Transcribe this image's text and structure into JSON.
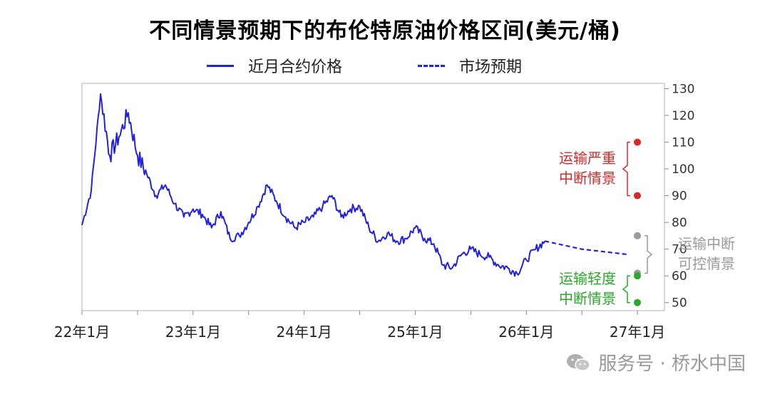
{
  "title": "不同情景预期下的布伦特原油价格区间(美元/桶)",
  "legend": {
    "series1": "近月合约价格",
    "series2": "市场预期"
  },
  "colors": {
    "line": "#2222dd",
    "severe": "#d42a2a",
    "controlled": "#9a9a9a",
    "mild": "#2aa82a",
    "axis": "#888888"
  },
  "watermark": {
    "text": "服务号 · 桥水中国",
    "icon": "wechat-icon"
  },
  "chart_data": {
    "type": "line",
    "title": "不同情景预期下的布伦特原油价格区间(美元/桶)",
    "xlabel": "",
    "ylabel": "",
    "x_ticks": [
      "22年1月",
      "23年1月",
      "24年1月",
      "25年1月",
      "26年1月",
      "27年1月"
    ],
    "y_ticks": [
      50,
      60,
      70,
      80,
      90,
      100,
      110,
      120,
      130
    ],
    "ylim": [
      47,
      132
    ],
    "xlim": [
      "2022-01",
      "2027-01"
    ],
    "grid": false,
    "legend_position": "top",
    "series": [
      {
        "name": "近月合约价格",
        "style": "solid",
        "x": [
          "2022-01",
          "2022-02",
          "2022-03",
          "2022-04",
          "2022-05",
          "2022-06",
          "2022-07",
          "2022-08",
          "2022-09",
          "2022-10",
          "2022-11",
          "2022-12",
          "2023-01",
          "2023-02",
          "2023-03",
          "2023-04",
          "2023-05",
          "2023-06",
          "2023-07",
          "2023-08",
          "2023-09",
          "2023-10",
          "2023-11",
          "2023-12",
          "2024-01",
          "2024-02",
          "2024-03",
          "2024-04",
          "2024-05",
          "2024-06",
          "2024-07",
          "2024-08",
          "2024-09",
          "2024-10",
          "2024-11",
          "2024-12",
          "2025-01",
          "2025-02",
          "2025-03",
          "2025-04",
          "2025-05",
          "2025-06",
          "2025-07",
          "2025-08",
          "2025-09",
          "2025-10",
          "2025-11",
          "2025-12",
          "2026-01",
          "2026-02",
          "2026-03"
        ],
        "values": [
          79,
          92,
          128,
          105,
          112,
          121,
          105,
          98,
          90,
          94,
          87,
          82,
          85,
          83,
          78,
          84,
          74,
          75,
          80,
          86,
          94,
          88,
          82,
          78,
          80,
          82,
          86,
          90,
          82,
          85,
          86,
          78,
          73,
          76,
          73,
          74,
          78,
          74,
          72,
          64,
          63,
          68,
          70,
          68,
          67,
          64,
          63,
          61,
          66,
          70,
          73
        ]
      },
      {
        "name": "市场预期",
        "style": "dashed",
        "x": [
          "2026-03",
          "2026-07",
          "2026-12"
        ],
        "values": [
          73,
          70,
          68
        ]
      }
    ],
    "scenarios": [
      {
        "label": "运输严重中断情景",
        "color": "#d42a2a",
        "low": 90,
        "high": 110,
        "x": "2027-01"
      },
      {
        "label": "运输中断可控情景",
        "color": "#9a9a9a",
        "low": 61,
        "high": 75,
        "x": "2027-01"
      },
      {
        "label": "运输轻度中断情景",
        "color": "#2aa82a",
        "low": 50,
        "high": 60,
        "x": "2027-01"
      }
    ],
    "scenario_labels": {
      "severe": [
        "运输严重",
        "中断情景"
      ],
      "controlled": [
        "运输中断",
        "可控情景"
      ],
      "mild": [
        "运输轻度",
        "中断情景"
      ]
    }
  }
}
